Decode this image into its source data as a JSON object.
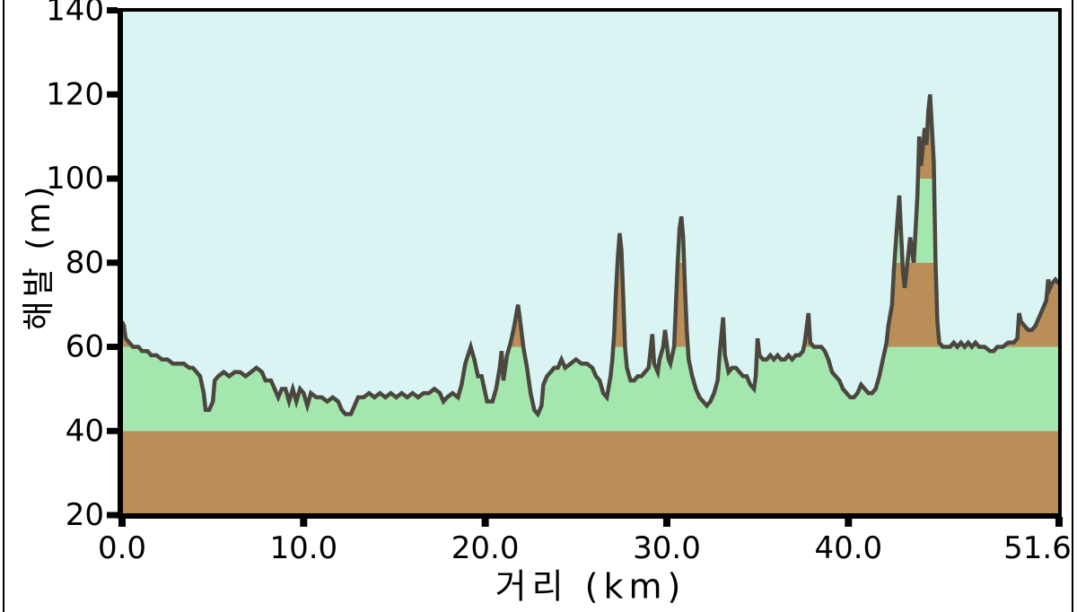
{
  "page": {
    "background_color": "#ffffff",
    "border_color": "#000000"
  },
  "chart_data": {
    "type": "area",
    "title": "",
    "xlabel": "거리  (km)",
    "ylabel": "해발 (m)",
    "xlim": [
      0.0,
      51.6
    ],
    "ylim": [
      20,
      140
    ],
    "grid": false,
    "legend": "none",
    "x_ticks": [
      {
        "value": 0.0,
        "label": "0.0"
      },
      {
        "value": 10.0,
        "label": "10.0"
      },
      {
        "value": 20.0,
        "label": "20.0"
      },
      {
        "value": 30.0,
        "label": "30.0"
      },
      {
        "value": 40.0,
        "label": "40.0"
      },
      {
        "value": 51.6,
        "label": "51.6",
        "dx": -24
      }
    ],
    "y_ticks": [
      {
        "value": 20,
        "label": "20"
      },
      {
        "value": 40,
        "label": "40"
      },
      {
        "value": 60,
        "label": "60"
      },
      {
        "value": 80,
        "label": "80"
      },
      {
        "value": 100,
        "label": "100"
      },
      {
        "value": 120,
        "label": "120"
      },
      {
        "value": 140,
        "label": "140"
      }
    ],
    "colors": {
      "sky": "#d9f4f2",
      "line": "#4b473f",
      "axis": "#000000",
      "band_brown": "#b98e59",
      "band_green": "#a3e6ae"
    },
    "elevation_bands": [
      {
        "min": 20,
        "max": 40,
        "color": "#b98e59"
      },
      {
        "min": 40,
        "max": 60,
        "color": "#a3e6ae"
      },
      {
        "min": 60,
        "max": 80,
        "color": "#b98e59"
      },
      {
        "min": 80,
        "max": 100,
        "color": "#a3e6ae"
      },
      {
        "min": 100,
        "max": 120,
        "color": "#b98e59"
      },
      {
        "min": 120,
        "max": 140,
        "color": "#a3e6ae"
      }
    ],
    "profile_units": [
      "km",
      "m"
    ],
    "profile": [
      [
        0.0,
        66
      ],
      [
        0.1,
        65
      ],
      [
        0.2,
        62
      ],
      [
        0.4,
        61
      ],
      [
        0.6,
        60
      ],
      [
        0.9,
        60
      ],
      [
        1.1,
        59
      ],
      [
        1.4,
        59
      ],
      [
        1.6,
        58
      ],
      [
        1.9,
        58
      ],
      [
        2.2,
        57
      ],
      [
        2.5,
        57
      ],
      [
        2.8,
        56
      ],
      [
        3.1,
        56
      ],
      [
        3.4,
        56
      ],
      [
        3.7,
        55
      ],
      [
        3.9,
        55
      ],
      [
        4.1,
        54
      ],
      [
        4.3,
        53
      ],
      [
        4.5,
        49
      ],
      [
        4.6,
        45
      ],
      [
        4.8,
        45
      ],
      [
        5.0,
        47
      ],
      [
        5.1,
        52
      ],
      [
        5.3,
        53
      ],
      [
        5.6,
        54
      ],
      [
        5.9,
        53
      ],
      [
        6.2,
        54
      ],
      [
        6.5,
        54
      ],
      [
        6.8,
        53
      ],
      [
        7.1,
        54
      ],
      [
        7.4,
        55
      ],
      [
        7.7,
        54
      ],
      [
        7.9,
        52
      ],
      [
        8.2,
        52
      ],
      [
        8.4,
        50
      ],
      [
        8.6,
        48
      ],
      [
        8.8,
        50
      ],
      [
        9.0,
        50
      ],
      [
        9.2,
        47
      ],
      [
        9.4,
        50
      ],
      [
        9.6,
        47
      ],
      [
        9.8,
        50
      ],
      [
        10.0,
        49
      ],
      [
        10.2,
        46
      ],
      [
        10.4,
        49
      ],
      [
        10.7,
        48
      ],
      [
        11.0,
        48
      ],
      [
        11.3,
        47
      ],
      [
        11.6,
        48
      ],
      [
        11.9,
        47
      ],
      [
        12.1,
        45
      ],
      [
        12.3,
        44
      ],
      [
        12.6,
        44
      ],
      [
        12.8,
        46
      ],
      [
        13.0,
        48
      ],
      [
        13.3,
        48
      ],
      [
        13.6,
        49
      ],
      [
        13.9,
        48
      ],
      [
        14.2,
        49
      ],
      [
        14.5,
        48
      ],
      [
        14.8,
        49
      ],
      [
        15.1,
        48
      ],
      [
        15.4,
        49
      ],
      [
        15.7,
        48
      ],
      [
        16.0,
        49
      ],
      [
        16.3,
        48
      ],
      [
        16.6,
        49
      ],
      [
        16.9,
        49
      ],
      [
        17.2,
        50
      ],
      [
        17.5,
        49
      ],
      [
        17.7,
        47
      ],
      [
        17.9,
        48
      ],
      [
        18.2,
        49
      ],
      [
        18.5,
        48
      ],
      [
        18.7,
        51
      ],
      [
        18.9,
        56
      ],
      [
        19.2,
        60
      ],
      [
        19.4,
        57
      ],
      [
        19.6,
        53
      ],
      [
        19.8,
        53
      ],
      [
        20.0,
        49
      ],
      [
        20.1,
        47
      ],
      [
        20.4,
        47
      ],
      [
        20.6,
        50
      ],
      [
        20.8,
        55
      ],
      [
        20.9,
        59
      ],
      [
        21.0,
        52
      ],
      [
        21.2,
        58
      ],
      [
        21.4,
        61
      ],
      [
        21.6,
        65
      ],
      [
        21.8,
        70
      ],
      [
        21.9,
        67
      ],
      [
        22.1,
        60
      ],
      [
        22.3,
        55
      ],
      [
        22.5,
        49
      ],
      [
        22.7,
        45
      ],
      [
        22.9,
        44
      ],
      [
        23.1,
        46
      ],
      [
        23.2,
        51
      ],
      [
        23.4,
        53
      ],
      [
        23.6,
        54
      ],
      [
        23.8,
        55
      ],
      [
        24.0,
        55
      ],
      [
        24.2,
        57
      ],
      [
        24.4,
        55
      ],
      [
        24.7,
        56
      ],
      [
        25.0,
        57
      ],
      [
        25.3,
        56
      ],
      [
        25.6,
        56
      ],
      [
        25.9,
        55
      ],
      [
        26.1,
        53
      ],
      [
        26.3,
        52
      ],
      [
        26.5,
        49
      ],
      [
        26.7,
        48
      ],
      [
        26.9,
        53
      ],
      [
        27.0,
        57
      ],
      [
        27.1,
        63
      ],
      [
        27.2,
        73
      ],
      [
        27.3,
        81
      ],
      [
        27.4,
        87
      ],
      [
        27.5,
        83
      ],
      [
        27.6,
        72
      ],
      [
        27.7,
        60
      ],
      [
        27.8,
        55
      ],
      [
        28.0,
        52
      ],
      [
        28.2,
        52
      ],
      [
        28.4,
        53
      ],
      [
        28.6,
        53
      ],
      [
        28.8,
        54
      ],
      [
        29.0,
        55
      ],
      [
        29.2,
        63
      ],
      [
        29.3,
        56
      ],
      [
        29.5,
        54
      ],
      [
        29.6,
        57
      ],
      [
        29.8,
        60
      ],
      [
        29.9,
        64
      ],
      [
        30.1,
        57
      ],
      [
        30.2,
        56
      ],
      [
        30.4,
        60
      ],
      [
        30.5,
        70
      ],
      [
        30.6,
        80
      ],
      [
        30.7,
        88
      ],
      [
        30.8,
        91
      ],
      [
        30.9,
        86
      ],
      [
        31.0,
        74
      ],
      [
        31.1,
        64
      ],
      [
        31.2,
        57
      ],
      [
        31.4,
        53
      ],
      [
        31.6,
        50
      ],
      [
        31.8,
        48
      ],
      [
        32.0,
        47
      ],
      [
        32.2,
        46
      ],
      [
        32.4,
        47
      ],
      [
        32.6,
        49
      ],
      [
        32.8,
        52
      ],
      [
        32.9,
        58
      ],
      [
        33.1,
        67
      ],
      [
        33.2,
        58
      ],
      [
        33.4,
        54
      ],
      [
        33.6,
        55
      ],
      [
        33.8,
        55
      ],
      [
        34.0,
        54
      ],
      [
        34.2,
        53
      ],
      [
        34.4,
        53
      ],
      [
        34.6,
        51
      ],
      [
        34.8,
        50
      ],
      [
        34.9,
        53
      ],
      [
        35.0,
        62
      ],
      [
        35.1,
        58
      ],
      [
        35.3,
        57
      ],
      [
        35.5,
        57
      ],
      [
        35.7,
        58
      ],
      [
        35.9,
        57
      ],
      [
        36.1,
        58
      ],
      [
        36.3,
        57
      ],
      [
        36.5,
        57
      ],
      [
        36.7,
        58
      ],
      [
        36.9,
        57
      ],
      [
        37.1,
        58
      ],
      [
        37.3,
        58
      ],
      [
        37.5,
        59
      ],
      [
        37.6,
        61
      ],
      [
        37.8,
        68
      ],
      [
        37.9,
        61
      ],
      [
        38.1,
        60
      ],
      [
        38.3,
        60
      ],
      [
        38.5,
        60
      ],
      [
        38.7,
        59
      ],
      [
        38.9,
        57
      ],
      [
        39.1,
        54
      ],
      [
        39.3,
        53
      ],
      [
        39.5,
        52
      ],
      [
        39.7,
        50
      ],
      [
        39.9,
        49
      ],
      [
        40.1,
        48
      ],
      [
        40.3,
        48
      ],
      [
        40.5,
        49
      ],
      [
        40.7,
        51
      ],
      [
        40.9,
        50
      ],
      [
        41.1,
        49
      ],
      [
        41.3,
        49
      ],
      [
        41.5,
        50
      ],
      [
        41.7,
        53
      ],
      [
        41.9,
        57
      ],
      [
        42.1,
        61
      ],
      [
        42.2,
        65
      ],
      [
        42.4,
        70
      ],
      [
        42.5,
        78
      ],
      [
        42.7,
        90
      ],
      [
        42.8,
        96
      ],
      [
        42.9,
        87
      ],
      [
        43.0,
        78
      ],
      [
        43.1,
        74
      ],
      [
        43.2,
        78
      ],
      [
        43.3,
        82
      ],
      [
        43.4,
        86
      ],
      [
        43.6,
        80
      ],
      [
        43.7,
        88
      ],
      [
        43.8,
        96
      ],
      [
        43.9,
        110
      ],
      [
        44.0,
        103
      ],
      [
        44.2,
        112
      ],
      [
        44.3,
        108
      ],
      [
        44.4,
        116
      ],
      [
        44.5,
        120
      ],
      [
        44.6,
        112
      ],
      [
        44.7,
        104
      ],
      [
        44.8,
        80
      ],
      [
        44.9,
        66
      ],
      [
        45.0,
        61
      ],
      [
        45.2,
        60
      ],
      [
        45.4,
        60
      ],
      [
        45.6,
        60
      ],
      [
        45.8,
        61
      ],
      [
        46.0,
        60
      ],
      [
        46.2,
        61
      ],
      [
        46.4,
        60
      ],
      [
        46.6,
        61
      ],
      [
        46.8,
        60
      ],
      [
        47.0,
        61
      ],
      [
        47.2,
        60
      ],
      [
        47.5,
        60
      ],
      [
        47.8,
        59
      ],
      [
        48.0,
        59
      ],
      [
        48.2,
        60
      ],
      [
        48.5,
        60
      ],
      [
        48.8,
        61
      ],
      [
        49.1,
        61
      ],
      [
        49.3,
        62
      ],
      [
        49.4,
        68
      ],
      [
        49.5,
        66
      ],
      [
        49.7,
        65
      ],
      [
        49.9,
        64
      ],
      [
        50.1,
        64
      ],
      [
        50.3,
        65
      ],
      [
        50.5,
        67
      ],
      [
        50.7,
        69
      ],
      [
        50.9,
        71
      ],
      [
        51.0,
        76
      ],
      [
        51.1,
        74
      ],
      [
        51.2,
        75
      ],
      [
        51.4,
        76
      ],
      [
        51.6,
        75
      ]
    ]
  }
}
